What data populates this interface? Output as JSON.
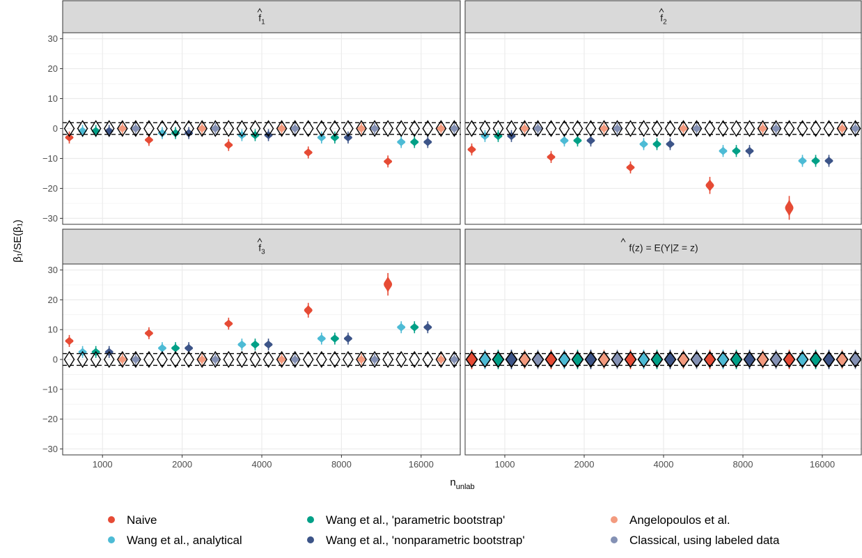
{
  "chart_data": {
    "type": "violin",
    "facets": [
      {
        "id": "f1",
        "strip": {
          "main": "f",
          "sub": "1"
        },
        "series_centers": {
          "naive": [
            -3,
            -3.8,
            -5.5,
            -8,
            -11
          ],
          "wang_analytical": [
            -0.8,
            -1.5,
            -2.2,
            -3,
            -4.5
          ],
          "wang_parametric": [
            -0.8,
            -1.5,
            -2.2,
            -3,
            -4.5
          ],
          "wang_nonparametric": [
            -0.8,
            -1.5,
            -2.2,
            -3,
            -4.5
          ],
          "angelopoulos": [
            0,
            0,
            0,
            0,
            0
          ],
          "classical": [
            0,
            0,
            0,
            0,
            0
          ]
        }
      },
      {
        "id": "f2",
        "strip": {
          "main": "f",
          "sub": "2"
        },
        "series_centers": {
          "naive": [
            -7,
            -9.5,
            -13,
            -19,
            -26.5
          ],
          "wang_analytical": [
            -2.5,
            -4,
            -5.2,
            -7.5,
            -10.8
          ],
          "wang_parametric": [
            -2.5,
            -4,
            -5.2,
            -7.5,
            -10.8
          ],
          "wang_nonparametric": [
            -2.5,
            -4,
            -5.2,
            -7.5,
            -10.8
          ],
          "angelopoulos": [
            0,
            0,
            0,
            0,
            0
          ],
          "classical": [
            0,
            0,
            0,
            0,
            0
          ]
        }
      },
      {
        "id": "f3",
        "strip": {
          "main": "f",
          "sub": "3"
        },
        "series_centers": {
          "naive": [
            6.2,
            8.8,
            12,
            16.5,
            25.2
          ],
          "wang_analytical": [
            2.5,
            3.8,
            5,
            7,
            10.8
          ],
          "wang_parametric": [
            2.5,
            3.8,
            5,
            7,
            10.8
          ],
          "wang_nonparametric": [
            2.5,
            3.8,
            5,
            7,
            10.8
          ],
          "angelopoulos": [
            0,
            0,
            0,
            0,
            0
          ],
          "classical": [
            0,
            0,
            0,
            0,
            0
          ]
        }
      },
      {
        "id": "oracle",
        "strip": {
          "main": "f(z) = E(Y|Z = z)",
          "sub": ""
        },
        "series_centers": {
          "naive": [
            0,
            0,
            0,
            0,
            0
          ],
          "wang_analytical": [
            0,
            0,
            0,
            0,
            0
          ],
          "wang_parametric": [
            0,
            0,
            0,
            0,
            0
          ],
          "wang_nonparametric": [
            0,
            0,
            0,
            0,
            0
          ],
          "angelopoulos": [
            0,
            0,
            0,
            0,
            0
          ],
          "classical": [
            0,
            0,
            0,
            0,
            0
          ]
        }
      }
    ],
    "x_categories": [
      "1000",
      "2000",
      "4000",
      "8000",
      "16000"
    ],
    "y_ticks": [
      30,
      20,
      10,
      0,
      -10,
      -20,
      -30
    ],
    "ylim": [
      -32,
      32
    ],
    "reference_lines": [
      1.96,
      -1.96
    ],
    "xlabel": {
      "main": "n",
      "sub": "unlab"
    },
    "ylabel": "β₁/SE(β₁)",
    "legend_position": "bottom",
    "series": [
      {
        "key": "naive",
        "name": "Naive",
        "color": "#E64B35"
      },
      {
        "key": "wang_analytical",
        "name": "Wang et al., analytical",
        "color": "#4DBBD5"
      },
      {
        "key": "wang_parametric",
        "name": "Wang et al., 'parametric bootstrap'",
        "color": "#00A087"
      },
      {
        "key": "wang_nonparametric",
        "name": "Wang et al., 'nonparametric bootstrap'",
        "color": "#3C5488"
      },
      {
        "key": "angelopoulos",
        "name": "Angelopoulos et al.",
        "color": "#F39B7F"
      },
      {
        "key": "classical",
        "name": "Classical, using labeled data",
        "color": "#8491B4"
      }
    ],
    "null_reference": {
      "marker": "open-diamond",
      "center": 0
    }
  }
}
